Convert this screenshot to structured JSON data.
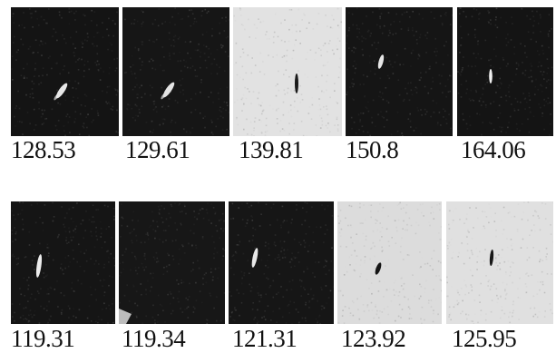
{
  "rows": [
    {
      "tiles": [
        {
          "label": "128.53",
          "tone": "dark",
          "bg": "#141414",
          "spot": "#e8e8e8"
        },
        {
          "label": "129.61",
          "tone": "dark",
          "bg": "#161616",
          "spot": "#e4e4e4"
        },
        {
          "label": "139.81",
          "tone": "light",
          "bg": "#e2e2e2",
          "spot": "#1a1a1a"
        },
        {
          "label": "150.8",
          "tone": "dark",
          "bg": "#151515",
          "spot": "#e6e6e6"
        },
        {
          "label": "164.06",
          "tone": "dark",
          "bg": "#141414",
          "spot": "#f0f0f0"
        }
      ]
    },
    {
      "tiles": [
        {
          "label": "119.31",
          "tone": "dark",
          "bg": "#151515",
          "spot": "#ececec"
        },
        {
          "label": "119.34",
          "tone": "dark",
          "bg": "#171717",
          "spot": "#bdbdbd"
        },
        {
          "label": "121.31",
          "tone": "dark",
          "bg": "#161616",
          "spot": "#e8e8e8"
        },
        {
          "label": "123.92",
          "tone": "light",
          "bg": "#dcdcdc",
          "spot": "#151515"
        },
        {
          "label": "125.95",
          "tone": "light",
          "bg": "#e0e0e0",
          "spot": "#181818"
        }
      ]
    }
  ]
}
